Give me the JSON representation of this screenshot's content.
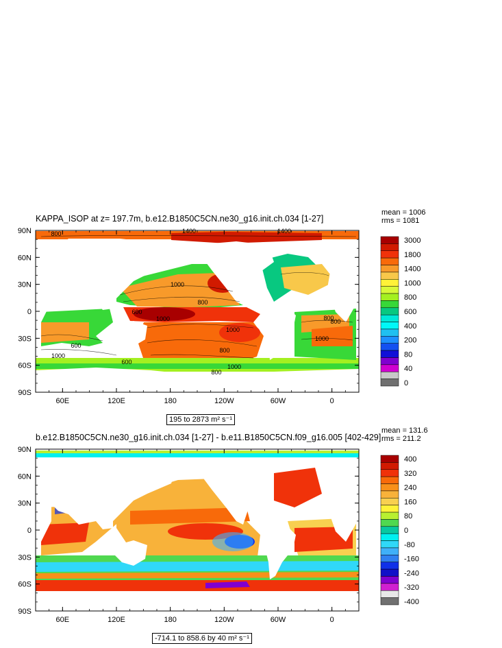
{
  "chart_data": [
    {
      "type": "heatmap",
      "title": "KAPPA_ISOP at z= 197.7m, b.e12.B1850C5CN.ne30_g16.init.ch.034 [1-27]",
      "stats": {
        "mean": "mean = 1006",
        "rms": "rms = 1081"
      },
      "range_label": "195 to 2873 m² s⁻¹",
      "x_ticks": [
        "60E",
        "120E",
        "180",
        "120W",
        "60W",
        "0"
      ],
      "y_ticks": [
        "90N",
        "60N",
        "30N",
        "0",
        "30S",
        "60S",
        "90S"
      ],
      "x_tick_values": [
        60,
        120,
        180,
        240,
        300,
        360
      ],
      "y_tick_values": [
        90,
        60,
        30,
        0,
        -30,
        -60,
        -90
      ],
      "lon_range": [
        30,
        390
      ],
      "lat_range": [
        -90,
        90
      ],
      "colorbar": {
        "labels": [
          "3000",
          "1800",
          "1400",
          "1000",
          "800",
          "600",
          "400",
          "200",
          "80",
          "40",
          "0"
        ],
        "colors": [
          "#a80000",
          "#d11a00",
          "#f0320a",
          "#f86a0a",
          "#f89a2a",
          "#f8c84a",
          "#fff238",
          "#d8f838",
          "#a4f020",
          "#38d838",
          "#08c880",
          "#00e8d8",
          "#00f8f8",
          "#20c0f0",
          "#1e90ff",
          "#1450f0",
          "#1010d8",
          "#8000d0",
          "#d000d0",
          "#c8c8c8",
          "#707070"
        ]
      },
      "contour_labels": [
        "1400",
        "1400",
        "800",
        "1000",
        "1000",
        "1000",
        "600",
        "800",
        "1000",
        "800",
        "600",
        "1000",
        "800",
        "600",
        "800",
        "1000",
        "800"
      ]
    },
    {
      "type": "heatmap",
      "title": "b.e12.B1850C5CN.ne30_g16.init.ch.034 [1-27] - b.e11.B1850C5CN.f09_g16.005 [402-429]",
      "stats": {
        "mean": "mean = 131.6",
        "rms": "rms = 211.2"
      },
      "range_label": "-714.1 to 858.6 by 40 m² s⁻¹",
      "x_ticks": [
        "60E",
        "120E",
        "180",
        "120W",
        "60W",
        "0"
      ],
      "y_ticks": [
        "90N",
        "60N",
        "30N",
        "0",
        "30S",
        "60S",
        "90S"
      ],
      "x_tick_values": [
        60,
        120,
        180,
        240,
        300,
        360
      ],
      "y_tick_values": [
        90,
        60,
        30,
        0,
        -30,
        -60,
        -90
      ],
      "lon_range": [
        30,
        390
      ],
      "lat_range": [
        -90,
        90
      ],
      "colorbar": {
        "labels": [
          "400",
          "320",
          "240",
          "160",
          "80",
          "0",
          "-80",
          "-160",
          "-240",
          "-320",
          "-400"
        ],
        "colors": [
          "#a80000",
          "#d11a00",
          "#f0320a",
          "#f86a0a",
          "#f8901a",
          "#f8b23a",
          "#f8d050",
          "#fff238",
          "#b8f030",
          "#50d850",
          "#08c8a0",
          "#00f0f0",
          "#30d8f8",
          "#40b0f8",
          "#3080f0",
          "#1030e8",
          "#1010c8",
          "#8000d0",
          "#d020d0",
          "#e8e8e8",
          "#707070"
        ]
      }
    }
  ]
}
